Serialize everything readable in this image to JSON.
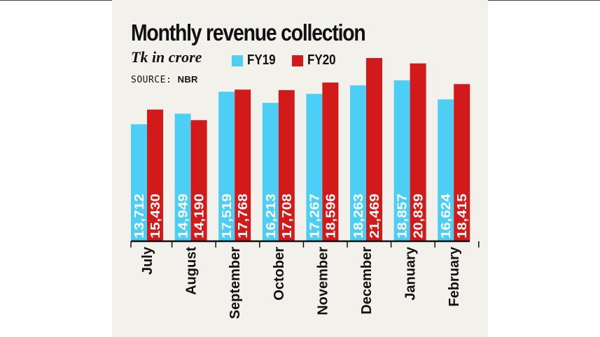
{
  "chart_data": {
    "type": "bar",
    "title": "Monthly revenue collection",
    "unit_label": "Tk in crore",
    "source_label": "SOURCE:",
    "source_name": "NBR",
    "categories": [
      "July",
      "August",
      "September",
      "October",
      "November",
      "December",
      "January",
      "February"
    ],
    "series": [
      {
        "name": "FY19",
        "color": "#4dcff5",
        "labels": [
          "13,712",
          "14,949",
          "17,519",
          "16,213",
          "17,267",
          "18,263",
          "18,857",
          "16,624"
        ],
        "values": [
          13712,
          14949,
          17519,
          16213,
          17267,
          18263,
          18857,
          16624
        ]
      },
      {
        "name": "FY20",
        "color": "#d31a1a",
        "labels": [
          "15,430",
          "14,190",
          "17,768",
          "17,708",
          "18,596",
          "21,469",
          "20,839",
          "18,415"
        ],
        "values": [
          15430,
          14190,
          17768,
          17708,
          18596,
          21469,
          20839,
          18415
        ]
      }
    ],
    "ylim": [
      0,
      22500
    ],
    "xlabel": "",
    "ylabel": "",
    "grid": false,
    "legend_position": "top"
  }
}
